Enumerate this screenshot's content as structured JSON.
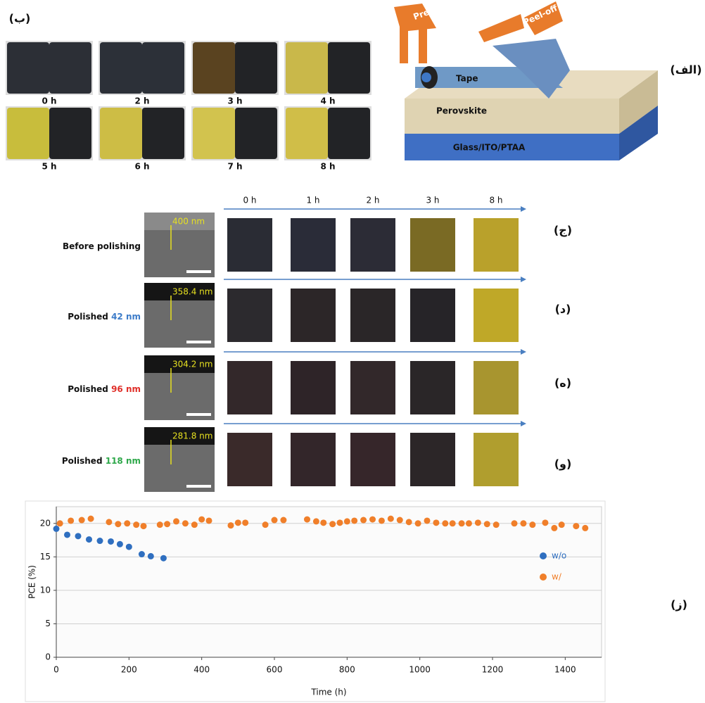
{
  "panels": {
    "a": "(الف)",
    "b": "(ب)",
    "c": "(ج)",
    "d": "(د)",
    "e": "(ه)",
    "f": "(و)",
    "g": "(ز)"
  },
  "schematic": {
    "press": "Press",
    "peel": "Peel-off",
    "tape": "Tape",
    "perovskite": "Perovskite",
    "substrate": "Glass/ITO/PTAA"
  },
  "photo_series": {
    "times": [
      "0 h",
      "2 h",
      "3 h",
      "4 h",
      "5 h",
      "6 h",
      "7 h",
      "8 h"
    ]
  },
  "polishing": {
    "times": [
      "0 h",
      "1 h",
      "2 h",
      "3 h",
      "8 h"
    ],
    "rows": [
      {
        "label": "Before polishing",
        "thickness": "400 nm"
      },
      {
        "label": "Polished",
        "depth": "42 nm",
        "depth_color": "#3d7cc9",
        "thickness": "358.4 nm"
      },
      {
        "label": "Polished",
        "depth": "96 nm",
        "depth_color": "#e0302a",
        "thickness": "304.2 nm"
      },
      {
        "label": "Polished",
        "depth": "118 nm",
        "depth_color": "#2ea84a",
        "thickness": "281.8 nm"
      }
    ]
  },
  "chart_data": {
    "type": "scatter",
    "x_label": "Time (h)",
    "y_label": "PCE (%)",
    "xlim": [
      0,
      1500
    ],
    "xticks": [
      0,
      200,
      400,
      600,
      800,
      1000,
      1200,
      1400
    ],
    "ylim": [
      0,
      22.5
    ],
    "yticks": [
      0,
      5,
      10,
      15,
      20
    ],
    "grid": true,
    "series": [
      {
        "name": "w/o",
        "color": "#2f6fc0",
        "x": [
          0,
          30,
          60,
          90,
          120,
          150,
          175,
          200,
          235,
          260,
          295
        ],
        "values": [
          19.2,
          18.3,
          18.1,
          17.6,
          17.4,
          17.3,
          16.9,
          16.5,
          15.4,
          15.1,
          14.8
        ]
      },
      {
        "name": "w/",
        "color": "#f07f2a",
        "x": [
          10,
          40,
          70,
          95,
          145,
          170,
          195,
          220,
          240,
          285,
          305,
          330,
          355,
          380,
          400,
          420,
          480,
          500,
          520,
          575,
          600,
          625,
          690,
          715,
          735,
          760,
          780,
          800,
          820,
          845,
          870,
          895,
          920,
          945,
          970,
          995,
          1020,
          1045,
          1070,
          1090,
          1115,
          1135,
          1160,
          1185,
          1210,
          1260,
          1285,
          1310,
          1345,
          1370,
          1390,
          1430,
          1455
        ],
        "values": [
          20.0,
          20.4,
          20.5,
          20.7,
          20.2,
          19.9,
          20.0,
          19.8,
          19.6,
          19.8,
          19.9,
          20.3,
          20.0,
          19.8,
          20.6,
          20.4,
          19.7,
          20.1,
          20.1,
          19.8,
          20.5,
          20.5,
          20.6,
          20.3,
          20.1,
          19.9,
          20.1,
          20.3,
          20.4,
          20.5,
          20.6,
          20.4,
          20.7,
          20.5,
          20.2,
          20.0,
          20.4,
          20.1,
          20.0,
          20.0,
          20.0,
          20.0,
          20.1,
          19.9,
          19.8,
          20.0,
          20.0,
          19.8,
          20.1,
          19.3,
          19.8,
          19.6,
          19.3
        ]
      }
    ],
    "legend": "right"
  }
}
